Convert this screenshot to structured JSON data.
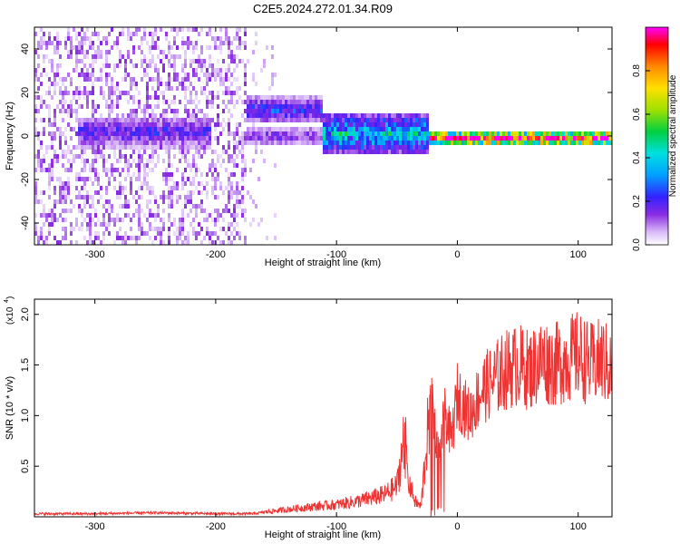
{
  "figure_title": "C2E5.2024.272.01.34.R09",
  "chart_data": [
    {
      "type": "heatmap",
      "title": "",
      "xlabel": "Height of straight line (km)",
      "ylabel": "Frequency (Hz)",
      "xlim": [
        -350,
        128
      ],
      "ylim": [
        -50,
        50
      ],
      "x_ticks": [
        "-300",
        "-200",
        "-100",
        "0",
        "100"
      ],
      "y_ticks": [
        "-40",
        "-20",
        "0",
        "20",
        "40"
      ],
      "colorbar": {
        "label": "Normalized spectral amplitude",
        "range": [
          0,
          1
        ],
        "ticks": [
          "0.0",
          "0.2",
          "0.4",
          "0.6",
          "0.8"
        ],
        "colors": [
          "#ffffff",
          "#d8b8f8",
          "#8a2be2",
          "#3322ff",
          "#00a0ff",
          "#00e0e0",
          "#00d040",
          "#a0e000",
          "#ffe000",
          "#ff8800",
          "#ff0000",
          "#ff00ff"
        ]
      },
      "features": [
        {
          "x_range": [
            -350,
            -175
          ],
          "freq_range": [
            -50,
            50
          ],
          "amplitude": 0.1,
          "description": "broadband scattered noise"
        },
        {
          "x_range": [
            -315,
            -205
          ],
          "freq_center": 3,
          "freq_width": 6,
          "amplitude": 0.25
        },
        {
          "x_range": [
            -175,
            -112
          ],
          "freq_center": 13,
          "freq_width": 5,
          "amplitude": 0.3
        },
        {
          "x_range": [
            -175,
            -112
          ],
          "freq_center": 1,
          "freq_width": 4,
          "amplitude": 0.2
        },
        {
          "x_range": [
            -112,
            -25
          ],
          "freq_center": 2,
          "freq_width": 8,
          "amplitude": 0.45
        },
        {
          "x_range": [
            -25,
            128
          ],
          "freq_center": 0,
          "freq_width": 3,
          "amplitude": 1.0
        }
      ]
    },
    {
      "type": "line",
      "title": "",
      "xlabel": "Height of straight line (km)",
      "ylabel": "SNR (10 * v/v)",
      "y_multiplier": "(x10^4)",
      "xlim": [
        -350,
        128
      ],
      "ylim": [
        0,
        2.15
      ],
      "x_ticks": [
        "-300",
        "-200",
        "-100",
        "0",
        "100"
      ],
      "y_ticks": [
        "0.5",
        "1.0",
        "1.5",
        "2.0"
      ],
      "series": [
        {
          "color": "#ee3333",
          "x": [
            -350,
            -300,
            -250,
            -200,
            -170,
            -150,
            -120,
            -100,
            -80,
            -60,
            -50,
            -45,
            -40,
            -35,
            -30,
            -25,
            -20,
            -15,
            -10,
            -5,
            0,
            10,
            20,
            30,
            40,
            50,
            60,
            70,
            80,
            90,
            100,
            110,
            120,
            128
          ],
          "y": [
            0.03,
            0.03,
            0.04,
            0.03,
            0.03,
            0.06,
            0.1,
            0.12,
            0.16,
            0.22,
            0.3,
            0.7,
            0.35,
            0.15,
            0.1,
            0.8,
            1.0,
            0.6,
            1.05,
            0.75,
            1.2,
            1.0,
            1.25,
            1.35,
            1.45,
            1.5,
            1.45,
            1.55,
            1.5,
            1.55,
            1.6,
            1.5,
            1.55,
            1.45
          ]
        }
      ]
    }
  ]
}
